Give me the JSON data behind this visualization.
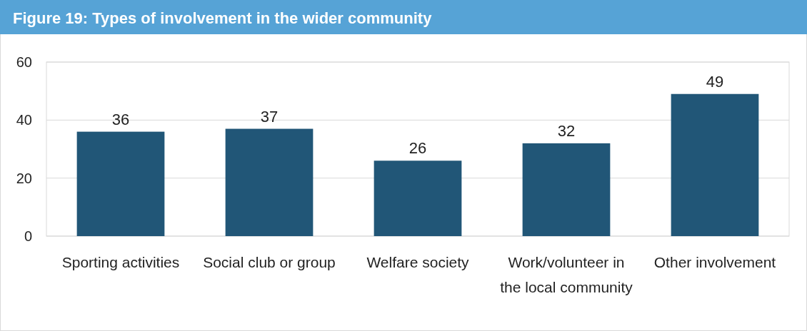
{
  "chart_data": {
    "type": "bar",
    "title": "Figure 19: Types of involvement in the wider community",
    "categories": [
      "Sporting activities",
      "Social club or group",
      "Welfare society",
      "Work/volunteer in the local community",
      "Other involvement"
    ],
    "values": [
      36,
      37,
      26,
      32,
      49
    ],
    "color": "#215677",
    "ylim": [
      0,
      60
    ],
    "yticks": [
      0,
      20,
      40,
      60
    ],
    "grid": "y",
    "data_labels": true
  }
}
